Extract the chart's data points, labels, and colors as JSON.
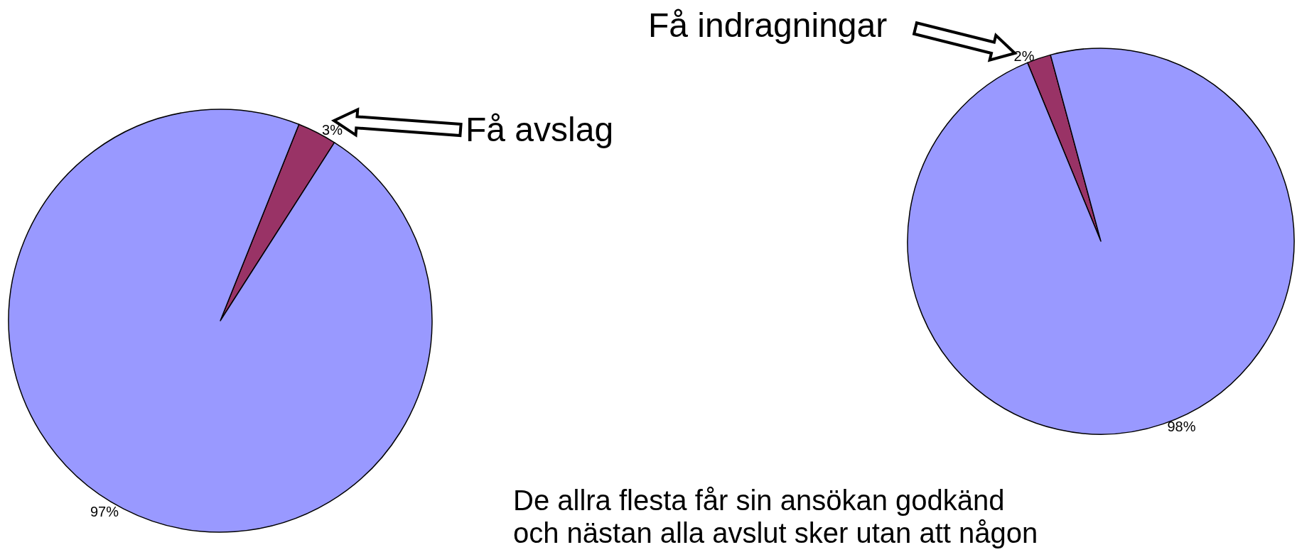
{
  "chart_data": [
    {
      "type": "pie",
      "categories": [
        null,
        null
      ],
      "values": [
        3,
        97
      ],
      "colors": [
        "#993366",
        "#9999ff"
      ],
      "value_labels": [
        "3%",
        "97%"
      ],
      "annotations": [
        "Få avslag",
        "De allra flesta får sin ansökan godkänd\noch nästan alla avslut sker utan att någon"
      ]
    },
    {
      "type": "pie",
      "categories": [
        null,
        null
      ],
      "values": [
        2,
        98
      ],
      "colors": [
        "#993366",
        "#9999ff"
      ],
      "value_labels": [
        "2%",
        "98%"
      ],
      "annotations": [
        "Få indragningar"
      ]
    }
  ]
}
